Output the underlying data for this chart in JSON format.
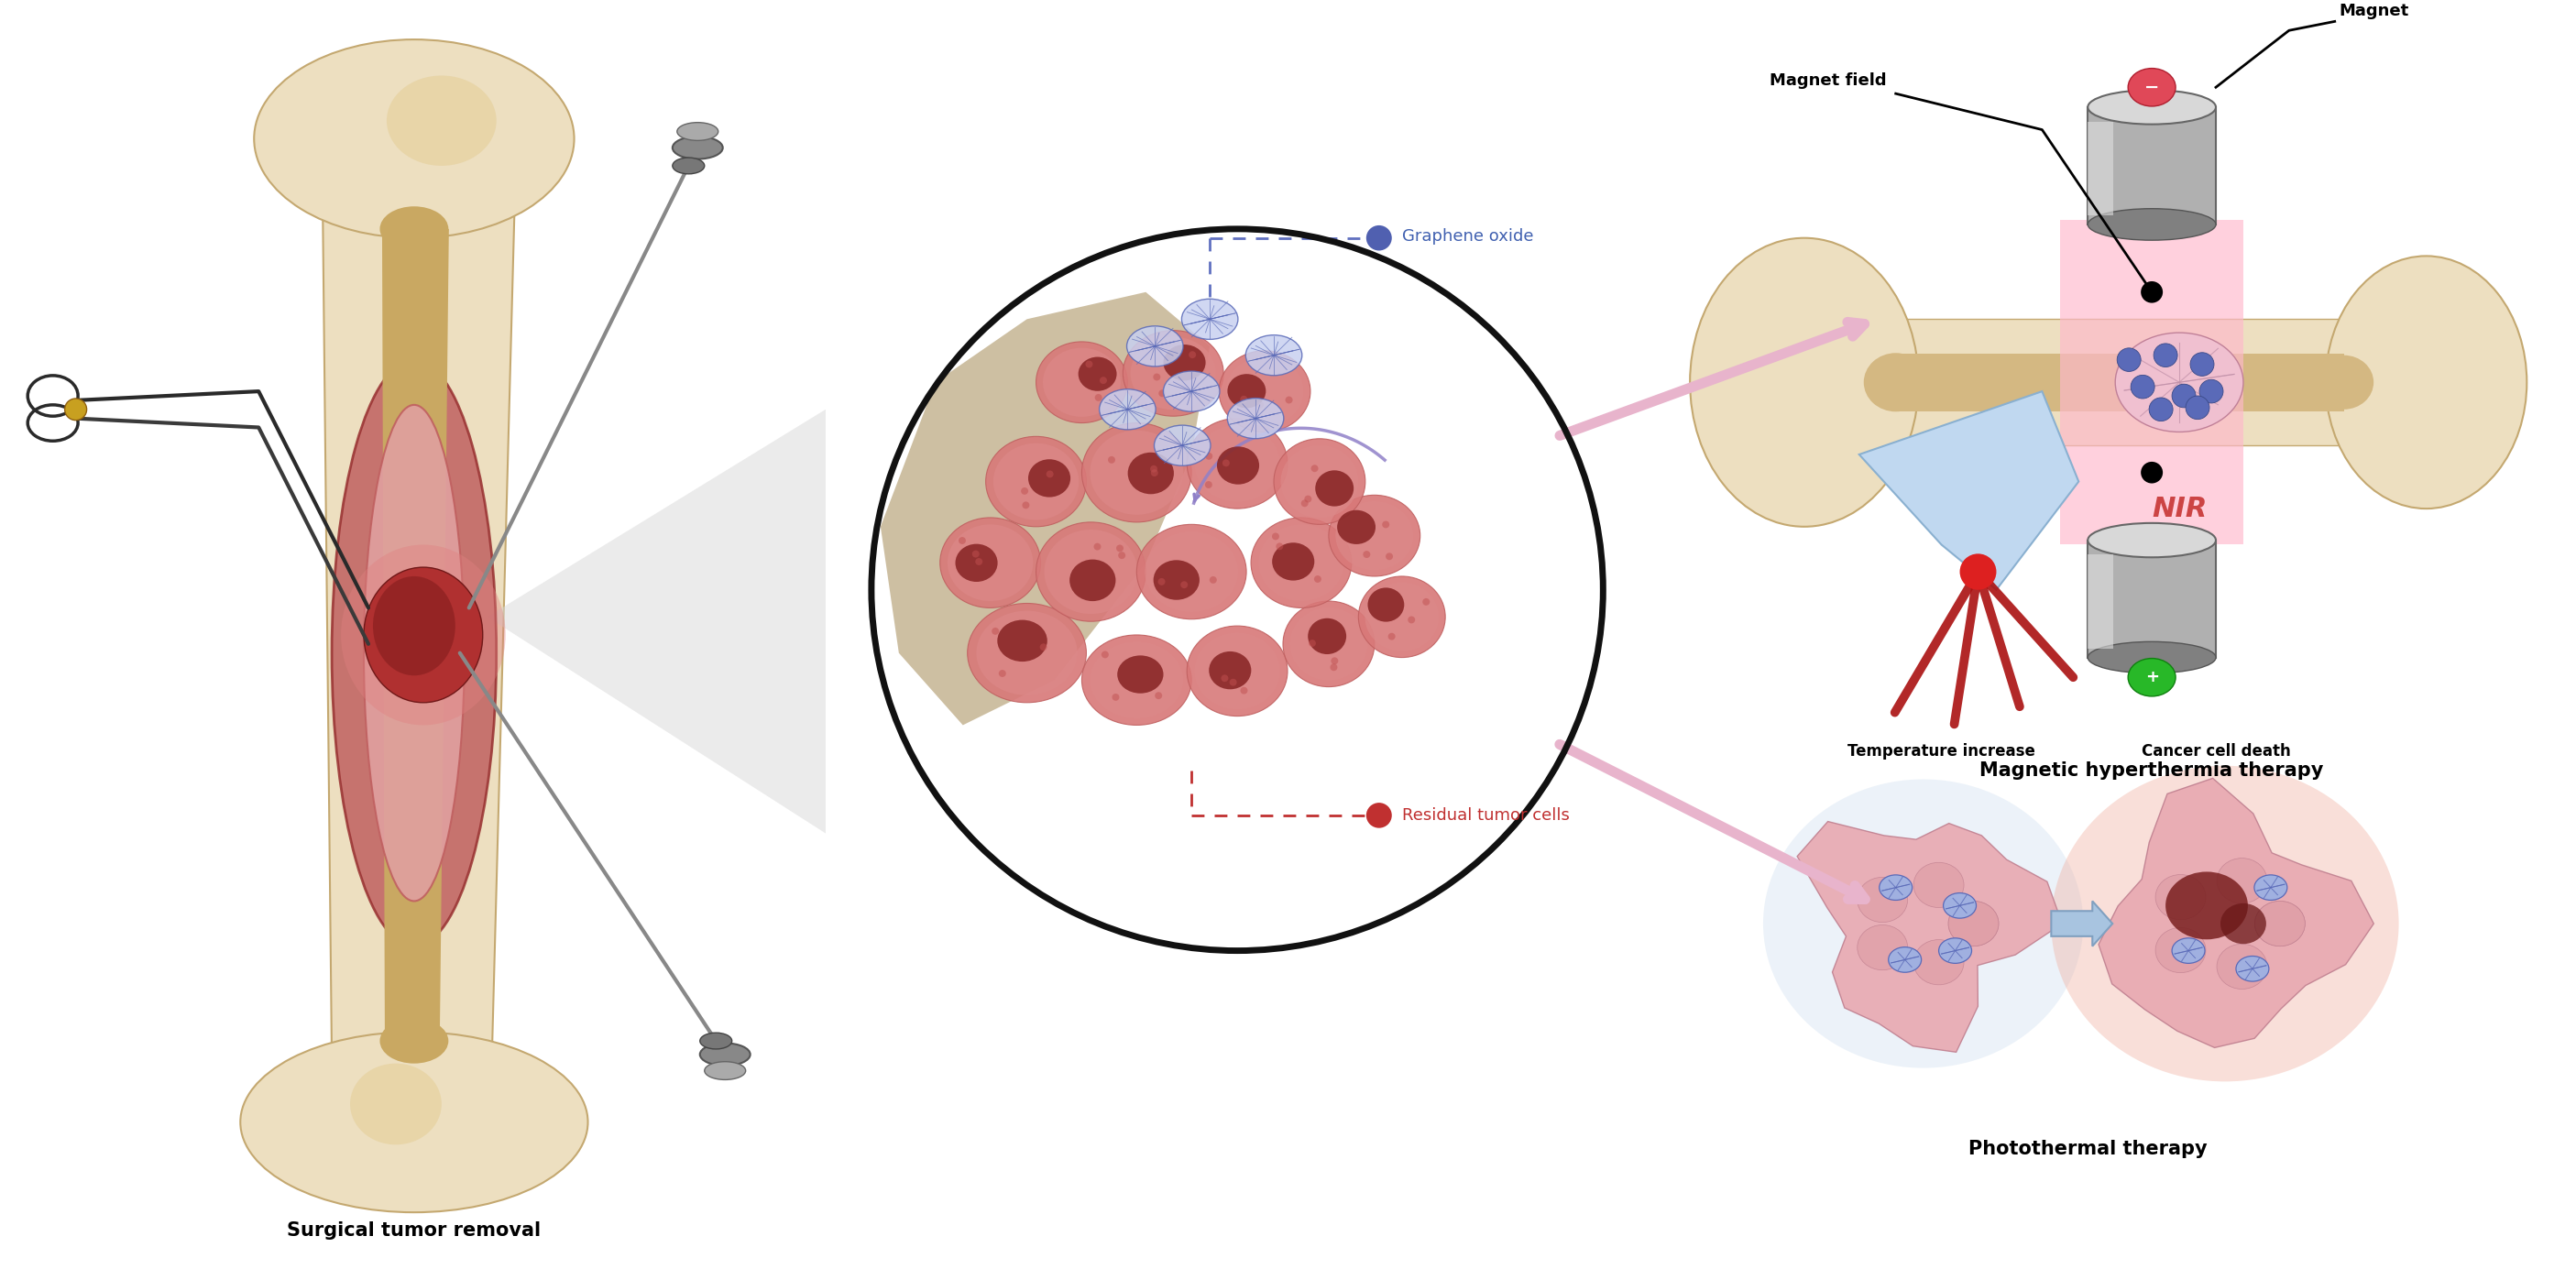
{
  "bg_color": "#ffffff",
  "fig_width": 28.11,
  "fig_height": 13.85,
  "labels": {
    "surgical": "Surgical tumor removal",
    "graphene_oxide": "Graphene oxide",
    "residual_tumor": "Residual tumor cells",
    "magnetic_therapy": "Magnetic hyperthermia therapy",
    "photothermal": "Photothermal therapy",
    "magnet_field": "Magnet field",
    "magnet": "Magnet",
    "temperature": "Temperature increase",
    "cancer_death": "Cancer cell death",
    "NIR": "NIR"
  },
  "colors": {
    "bone_outer": "#eddfc0",
    "bone_outer2": "#e8d5a8",
    "bone_inner": "#d4b882",
    "bone_canal": "#c9a862",
    "tumor_red": "#b03030",
    "tumor_pink": "#cc7070",
    "tumor_mid": "#d98080",
    "tumor_light": "#e8a0a0",
    "graphene_blue": "#5a6ab8",
    "graphene_dark": "#3a4a88",
    "arrow_pink": "#e8b4cc",
    "circle_border": "#111111",
    "scaffold_beige": "#c8b898",
    "magnet_light": "#d8d8d8",
    "magnet_mid": "#b0b0b0",
    "magnet_dark": "#808080",
    "field_pink": "#ffb8cc",
    "nir_red": "#aa1010",
    "nir_text": "#cc4444",
    "green_plus": "#22bb22",
    "red_minus": "#cc2222",
    "cell_pink": "#e8a0a8",
    "cell_border": "#c07080",
    "cell_nucleus": "#993040"
  }
}
